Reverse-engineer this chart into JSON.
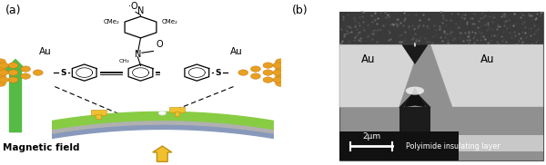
{
  "fig_width": 6.0,
  "fig_height": 1.82,
  "dpi": 100,
  "bg_color": "#ffffff",
  "label_a": "(a)",
  "label_b": "(b)",
  "magnetic_field_text": "Magnetic field",
  "au_left_text": "Au",
  "au_right_text": "Au",
  "au_sem_left": "Au",
  "au_sem_right": "Au",
  "scale_bar_text": "2μm",
  "polyimide_text": "Polyimide insulating layer",
  "green_arrow_color": "#55bb44",
  "yellow_color": "#f0c030",
  "gold_cluster_color": "#e8a020",
  "gold_edge_color": "#c07010",
  "green_layer_color": "#88cc44",
  "gray_layer_color": "#b0b0b0",
  "blue_layer_color": "#8899bb",
  "sem_mid_gray": "#999999",
  "sem_electrode_light": "#cccccc",
  "sem_dark": "#1a1a1a",
  "sem_top_dark": "#444444",
  "sem_label_bg": "#111111",
  "panel_split": 0.515
}
